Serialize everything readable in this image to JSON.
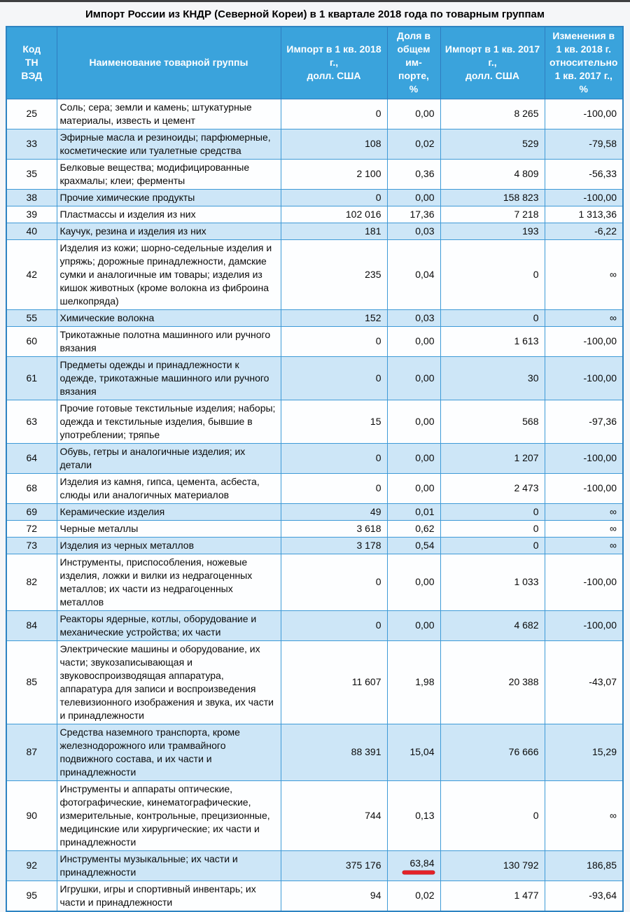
{
  "page": {
    "title": "Импорт России из КНДР (Северной Кореи) в 1 квартале 2018 года по товарным группам"
  },
  "colors": {
    "header_bg": "#3aa3dc",
    "header_grid": "#2f7cc0",
    "grid": "#3e9ad7",
    "outer_border": "#2d83c2",
    "row_white": "#fdfeff",
    "row_blue": "#cde6f7",
    "red_annotation": "#e32227",
    "top_bar": "#3f3f41",
    "page_bg": "#f5f6f8"
  },
  "table": {
    "columns": [
      {
        "key": "code",
        "label": "Код\nТН\nВЭД"
      },
      {
        "key": "name",
        "label": "Наименование товарной группы"
      },
      {
        "key": "imp2018",
        "label": "Импорт в 1 кв. 2018\nг.,\nдолл. США"
      },
      {
        "key": "share",
        "label": "Доля в\nобщем\nим-\nпорте,\n%"
      },
      {
        "key": "imp2017",
        "label": "Импорт в 1 кв. 2017\nг.,\nдолл. США"
      },
      {
        "key": "change",
        "label": "Изменения в\n1 кв. 2018 г.\nотносительно\n1 кв. 2017 г.,\n%"
      }
    ],
    "rows": [
      {
        "code": "25",
        "name": "Соль; сера; земли и камень; штукатурные материалы, известь и цемент",
        "imp2018": "0",
        "share": "0,00",
        "imp2017": "8 265",
        "change": "-100,00"
      },
      {
        "code": "33",
        "name": "Эфирные масла и резиноиды; парфюмерные, косметические или туалетные средства",
        "imp2018": "108",
        "share": "0,02",
        "imp2017": "529",
        "change": "-79,58"
      },
      {
        "code": "35",
        "name": "Белковые вещества; модифицированные крахмалы; клеи; ферменты",
        "imp2018": "2 100",
        "share": "0,36",
        "imp2017": "4 809",
        "change": "-56,33"
      },
      {
        "code": "38",
        "name": "Прочие химические продукты",
        "imp2018": "0",
        "share": "0,00",
        "imp2017": "158 823",
        "change": "-100,00"
      },
      {
        "code": "39",
        "name": "Пластмассы и изделия из них",
        "imp2018": "102 016",
        "share": "17,36",
        "imp2017": "7 218",
        "change": "1 313,36"
      },
      {
        "code": "40",
        "name": "Каучук, резина и изделия из них",
        "imp2018": "181",
        "share": "0,03",
        "imp2017": "193",
        "change": "-6,22"
      },
      {
        "code": "42",
        "name": "Изделия из кожи; шорно-седельные изделия и упряжь; дорожные принадлежности, дамские сумки и аналогичные им товары; изделия из кишок животных (кроме волокна из фиброина шелкопряда)",
        "imp2018": "235",
        "share": "0,04",
        "imp2017": "0",
        "change": "∞"
      },
      {
        "code": "55",
        "name": "Химические волокна",
        "imp2018": "152",
        "share": "0,03",
        "imp2017": "0",
        "change": "∞"
      },
      {
        "code": "60",
        "name": "Трикотажные полотна машинного или ручного вязания",
        "imp2018": "0",
        "share": "0,00",
        "imp2017": "1 613",
        "change": "-100,00"
      },
      {
        "code": "61",
        "name": "Предметы одежды и принадлежности к одежде, трикотажные машинного или ручного вязания",
        "imp2018": "0",
        "share": "0,00",
        "imp2017": "30",
        "change": "-100,00"
      },
      {
        "code": "63",
        "name": "Прочие готовые текстильные изделия; наборы; одежда и текстильные изделия, бывшие в употреблении; тряпье",
        "imp2018": "15",
        "share": "0,00",
        "imp2017": "568",
        "change": "-97,36"
      },
      {
        "code": "64",
        "name": "Обувь, гетры и аналогичные изделия; их детали",
        "imp2018": "0",
        "share": "0,00",
        "imp2017": "1 207",
        "change": "-100,00"
      },
      {
        "code": "68",
        "name": "Изделия из камня, гипса, цемента, асбеста, слюды или аналогичных материалов",
        "imp2018": "0",
        "share": "0,00",
        "imp2017": "2 473",
        "change": "-100,00"
      },
      {
        "code": "69",
        "name": "Керамические изделия",
        "imp2018": "49",
        "share": "0,01",
        "imp2017": "0",
        "change": "∞"
      },
      {
        "code": "72",
        "name": "Черные металлы",
        "imp2018": "3 618",
        "share": "0,62",
        "imp2017": "0",
        "change": "∞"
      },
      {
        "code": "73",
        "name": "Изделия из черных металлов",
        "imp2018": "3 178",
        "share": "0,54",
        "imp2017": "0",
        "change": "∞"
      },
      {
        "code": "82",
        "name": "Инструменты, приспособления, ножевые изделия, ложки и вилки из недрагоценных металлов; их части из недрагоценных металлов",
        "imp2018": "0",
        "share": "0,00",
        "imp2017": "1 033",
        "change": "-100,00"
      },
      {
        "code": "84",
        "name": "Реакторы ядерные, котлы, оборудование и механические устройства; их части",
        "imp2018": "0",
        "share": "0,00",
        "imp2017": "4 682",
        "change": "-100,00"
      },
      {
        "code": "85",
        "name": "Электрические машины и оборудование, их части; звукозаписывающая и звуковоспроизводящая аппаратура, аппаратура для записи и воспроизведения телевизионного изображения и звука, их части и принадлежности",
        "imp2018": "11 607",
        "share": "1,98",
        "imp2017": "20 388",
        "change": "-43,07"
      },
      {
        "code": "87",
        "name": "Средства наземного транспорта, кроме железнодорожного или трамвайного подвижного состава, и их части и принадлежности",
        "imp2018": "88 391",
        "share": "15,04",
        "imp2017": "76 666",
        "change": "15,29"
      },
      {
        "code": "90",
        "name": "Инструменты и аппараты оптические, фотографические, кинематографические, измерительные, контрольные, прецизионные, медицинские или хирургические; их части и принадлежности",
        "imp2018": "744",
        "share": "0,13",
        "imp2017": "0",
        "change": "∞"
      },
      {
        "code": "92",
        "name": "Инструменты музыкальные; их части и принадлежности",
        "imp2018": "375 176",
        "share": "63,84",
        "imp2017": "130 792",
        "change": "186,85"
      },
      {
        "code": "95",
        "name": "Игрушки, игры и спортивный инвентарь; их части и принадлежности",
        "imp2018": "94",
        "share": "0,02",
        "imp2017": "1 477",
        "change": "-93,64"
      }
    ]
  },
  "annotations": {
    "red_underline": {
      "row_code": "92",
      "column": "share",
      "meaning": "highlighted value 63,84"
    }
  }
}
